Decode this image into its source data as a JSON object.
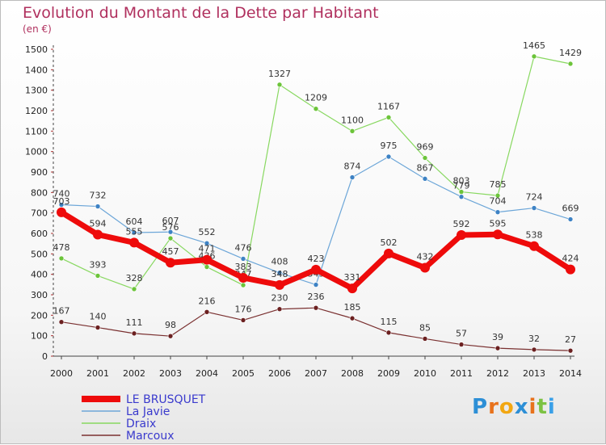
{
  "title": "Evolution du Montant de la Dette par Habitant",
  "unit": "(en €)",
  "brand": {
    "text": "Proxiti",
    "letters": [
      "P",
      "r",
      "o",
      "x",
      "i",
      "t",
      "i"
    ],
    "colors": [
      "#2d8fd6",
      "#e8721c",
      "#f2a712",
      "#2d8fd6",
      "#e8721c",
      "#7cc242",
      "#3aa0e8"
    ]
  },
  "chart_data": {
    "type": "line",
    "categories": [
      "2000",
      "2001",
      "2002",
      "2003",
      "2004",
      "2005",
      "2006",
      "2007",
      "2008",
      "2009",
      "2010",
      "2011",
      "2012",
      "2013",
      "2014"
    ],
    "ylim": [
      0,
      1500
    ],
    "yticks": [
      "0",
      "100",
      "200",
      "300",
      "400",
      "500",
      "600",
      "700",
      "800",
      "900",
      "1000",
      "1100",
      "1200",
      "1300",
      "1400",
      "1500"
    ],
    "grid": false,
    "legend_position": "bottom-left",
    "series": [
      {
        "name": "Draix",
        "color": "#88d860",
        "dot": "#6cc43a",
        "width": 1.2,
        "values": [
          478,
          393,
          328,
          576,
          436,
          347,
          1327,
          1209,
          1100,
          1167,
          969,
          803,
          785,
          1465,
          1429
        ],
        "labels": [
          "478",
          "393",
          "328",
          "576",
          "436",
          "347",
          "1327",
          "1209",
          "1100",
          "1167",
          "969",
          "803",
          "785",
          "1465",
          "1429"
        ]
      },
      {
        "name": "La Javie",
        "color": "#6ca6d8",
        "dot": "#3d82c4",
        "width": 1.2,
        "values": [
          740,
          732,
          604,
          607,
          552,
          476,
          408,
          349,
          874,
          975,
          867,
          779,
          704,
          724,
          669
        ],
        "labels": [
          "740",
          "732",
          "604",
          "607",
          "552",
          "476",
          "408",
          "349",
          "874",
          "975",
          "867",
          "779",
          "704",
          "724",
          "669"
        ]
      },
      {
        "name": "Marcoux",
        "color": "#7a3030",
        "dot": "#6b2020",
        "width": 1.2,
        "values": [
          167,
          140,
          111,
          98,
          216,
          176,
          230,
          236,
          185,
          115,
          85,
          57,
          39,
          32,
          27
        ],
        "labels": [
          "167",
          "140",
          "111",
          "98",
          "216",
          "176",
          "230",
          "236",
          "185",
          "115",
          "85",
          "57",
          "39",
          "32",
          "27"
        ]
      },
      {
        "name": "LE BRUSQUET",
        "color": "#ee0b0b",
        "dot": "#ee0b0b",
        "width": 7,
        "values": [
          703,
          594,
          555,
          457,
          471,
          383,
          348,
          423,
          331,
          502,
          432,
          592,
          595,
          538,
          424
        ],
        "labels": [
          "703",
          "594",
          "555",
          "457",
          "471",
          "383",
          "348",
          "423",
          "331",
          "502",
          "432",
          "592",
          "595",
          "538",
          "424"
        ]
      }
    ],
    "legend": [
      "LE BRUSQUET",
      "La Javie",
      "Draix",
      "Marcoux"
    ]
  }
}
